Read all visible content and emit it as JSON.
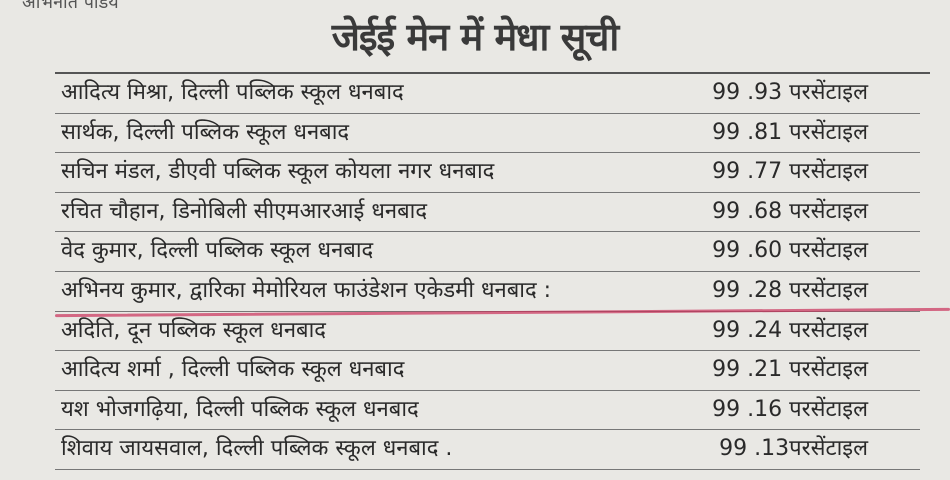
{
  "byline": "अभिनीत पांडेय",
  "title": "जेईई मेन में मेधा सूची",
  "highlight_color": "#c9305a",
  "entries": [
    {
      "name": "आदित्य मिश्रा, दिल्ली पब्लिक स्कूल धनबाद",
      "score": "99 .93 परसेंटाइल"
    },
    {
      "name": "सार्थक, दिल्ली पब्लिक स्कूल धनबाद",
      "score": "99 .81 परसेंटाइल"
    },
    {
      "name": "सचिन मंडल, डीएवी पब्लिक स्कूल कोयला नगर धनबाद",
      "score": "99 .77 परसेंटाइल"
    },
    {
      "name": "रचित चौहान, डिनोबिली सीएमआरआई धनबाद",
      "score": "99 .68 परसेंटाइल"
    },
    {
      "name": "वेद कुमार, दिल्ली पब्लिक स्कूल धनबाद",
      "score": "99 .60 परसेंटाइल"
    },
    {
      "name": "अभिनय कुमार, द्वारिका मेमोरियल फाउंडेशन एकेडमी धनबाद :",
      "score": "99 .28 परसेंटाइल"
    },
    {
      "name": "अदिति, दून पब्लिक स्कूल धनबाद",
      "score": "99 .24 परसेंटाइल"
    },
    {
      "name": "आदित्य शर्मा , दिल्ली पब्लिक स्कूल धनबाद",
      "score": "99 .21 परसेंटाइल"
    },
    {
      "name": "यश भोजगढ़िया, दिल्ली पब्लिक स्कूल धनबाद",
      "score": "99 .16 परसेंटाइल"
    },
    {
      "name": "शिवाय जायसवाल, दिल्ली पब्लिक स्कूल धनबाद .",
      "score": "99 .13परसेंटाइल"
    }
  ]
}
